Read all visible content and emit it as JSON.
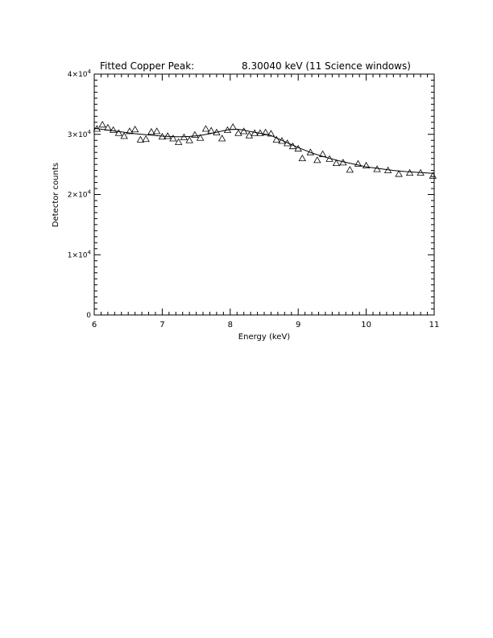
{
  "chart_data": {
    "type": "scatter",
    "title": "Fitted Copper Peak:",
    "title_right": "8.30040 keV (11 Science windows)",
    "xlabel": "Energy (keV)",
    "ylabel": "Detector counts",
    "xlim": [
      6,
      11
    ],
    "ylim": [
      0,
      40000
    ],
    "xticks": [
      6,
      7,
      8,
      9,
      10,
      11
    ],
    "xtick_labels": [
      "6",
      "7",
      "8",
      "9",
      "10",
      "11"
    ],
    "yticks": [
      0,
      10000,
      20000,
      30000,
      40000
    ],
    "ytick_labels": [
      {
        "mant": "0",
        "exp": ""
      },
      {
        "mant": "1×10",
        "exp": "4"
      },
      {
        "mant": "2×10",
        "exp": "4"
      },
      {
        "mant": "3×10",
        "exp": "4"
      },
      {
        "mant": "4×10",
        "exp": "4"
      }
    ],
    "grid": false,
    "series": [
      {
        "marker": "triangle",
        "x": [
          6.04,
          6.12,
          6.2,
          6.28,
          6.36,
          6.44,
          6.52,
          6.6,
          6.68,
          6.76,
          6.84,
          6.92,
          7.0,
          7.08,
          7.16,
          7.24,
          7.32,
          7.4,
          7.48,
          7.56,
          7.64,
          7.72,
          7.8,
          7.88,
          7.96,
          8.04,
          8.12,
          8.2,
          8.28,
          8.36,
          8.44,
          8.52,
          8.6,
          8.68,
          8.76,
          8.84,
          8.92,
          9.0,
          9.06,
          9.18,
          9.28,
          9.36,
          9.46,
          9.56,
          9.66,
          9.76,
          9.88,
          10.0,
          10.16,
          10.32,
          10.48,
          10.64,
          10.8,
          10.98
        ],
        "y": [
          30900,
          31600,
          31100,
          30700,
          30200,
          29700,
          30500,
          30800,
          29100,
          29200,
          30400,
          30500,
          29600,
          29700,
          29300,
          28700,
          29500,
          29000,
          29900,
          29400,
          30900,
          30600,
          30300,
          29300,
          30700,
          31200,
          30200,
          30500,
          29800,
          30200,
          30200,
          30300,
          30100,
          29100,
          28900,
          28500,
          28000,
          27600,
          26000,
          27000,
          25700,
          26700,
          25900,
          25200,
          25300,
          24100,
          25100,
          24800,
          24200,
          24000,
          23400,
          23600,
          23600,
          23100
        ]
      },
      {
        "marker": "line",
        "x": [
          6.0,
          6.1,
          6.2,
          6.3,
          6.4,
          6.5,
          6.6,
          6.7,
          6.8,
          6.9,
          7.0,
          7.1,
          7.2,
          7.3,
          7.4,
          7.5,
          7.6,
          7.7,
          7.8,
          7.9,
          8.0,
          8.1,
          8.2,
          8.3,
          8.4,
          8.5,
          8.6,
          8.7,
          8.8,
          8.9,
          9.0,
          9.2,
          9.4,
          9.6,
          9.8,
          10.0,
          10.2,
          10.4,
          10.6,
          10.8,
          11.0
        ],
        "y": [
          31000,
          30850,
          30700,
          30550,
          30400,
          30250,
          30100,
          30000,
          29900,
          29800,
          29700,
          29650,
          29600,
          29600,
          29650,
          29750,
          29900,
          30100,
          30350,
          30600,
          30800,
          30850,
          30700,
          30450,
          30250,
          30050,
          29800,
          29300,
          28800,
          28300,
          27800,
          26900,
          26200,
          25600,
          25100,
          24600,
          24300,
          24000,
          23800,
          23650,
          23500
        ]
      }
    ]
  }
}
